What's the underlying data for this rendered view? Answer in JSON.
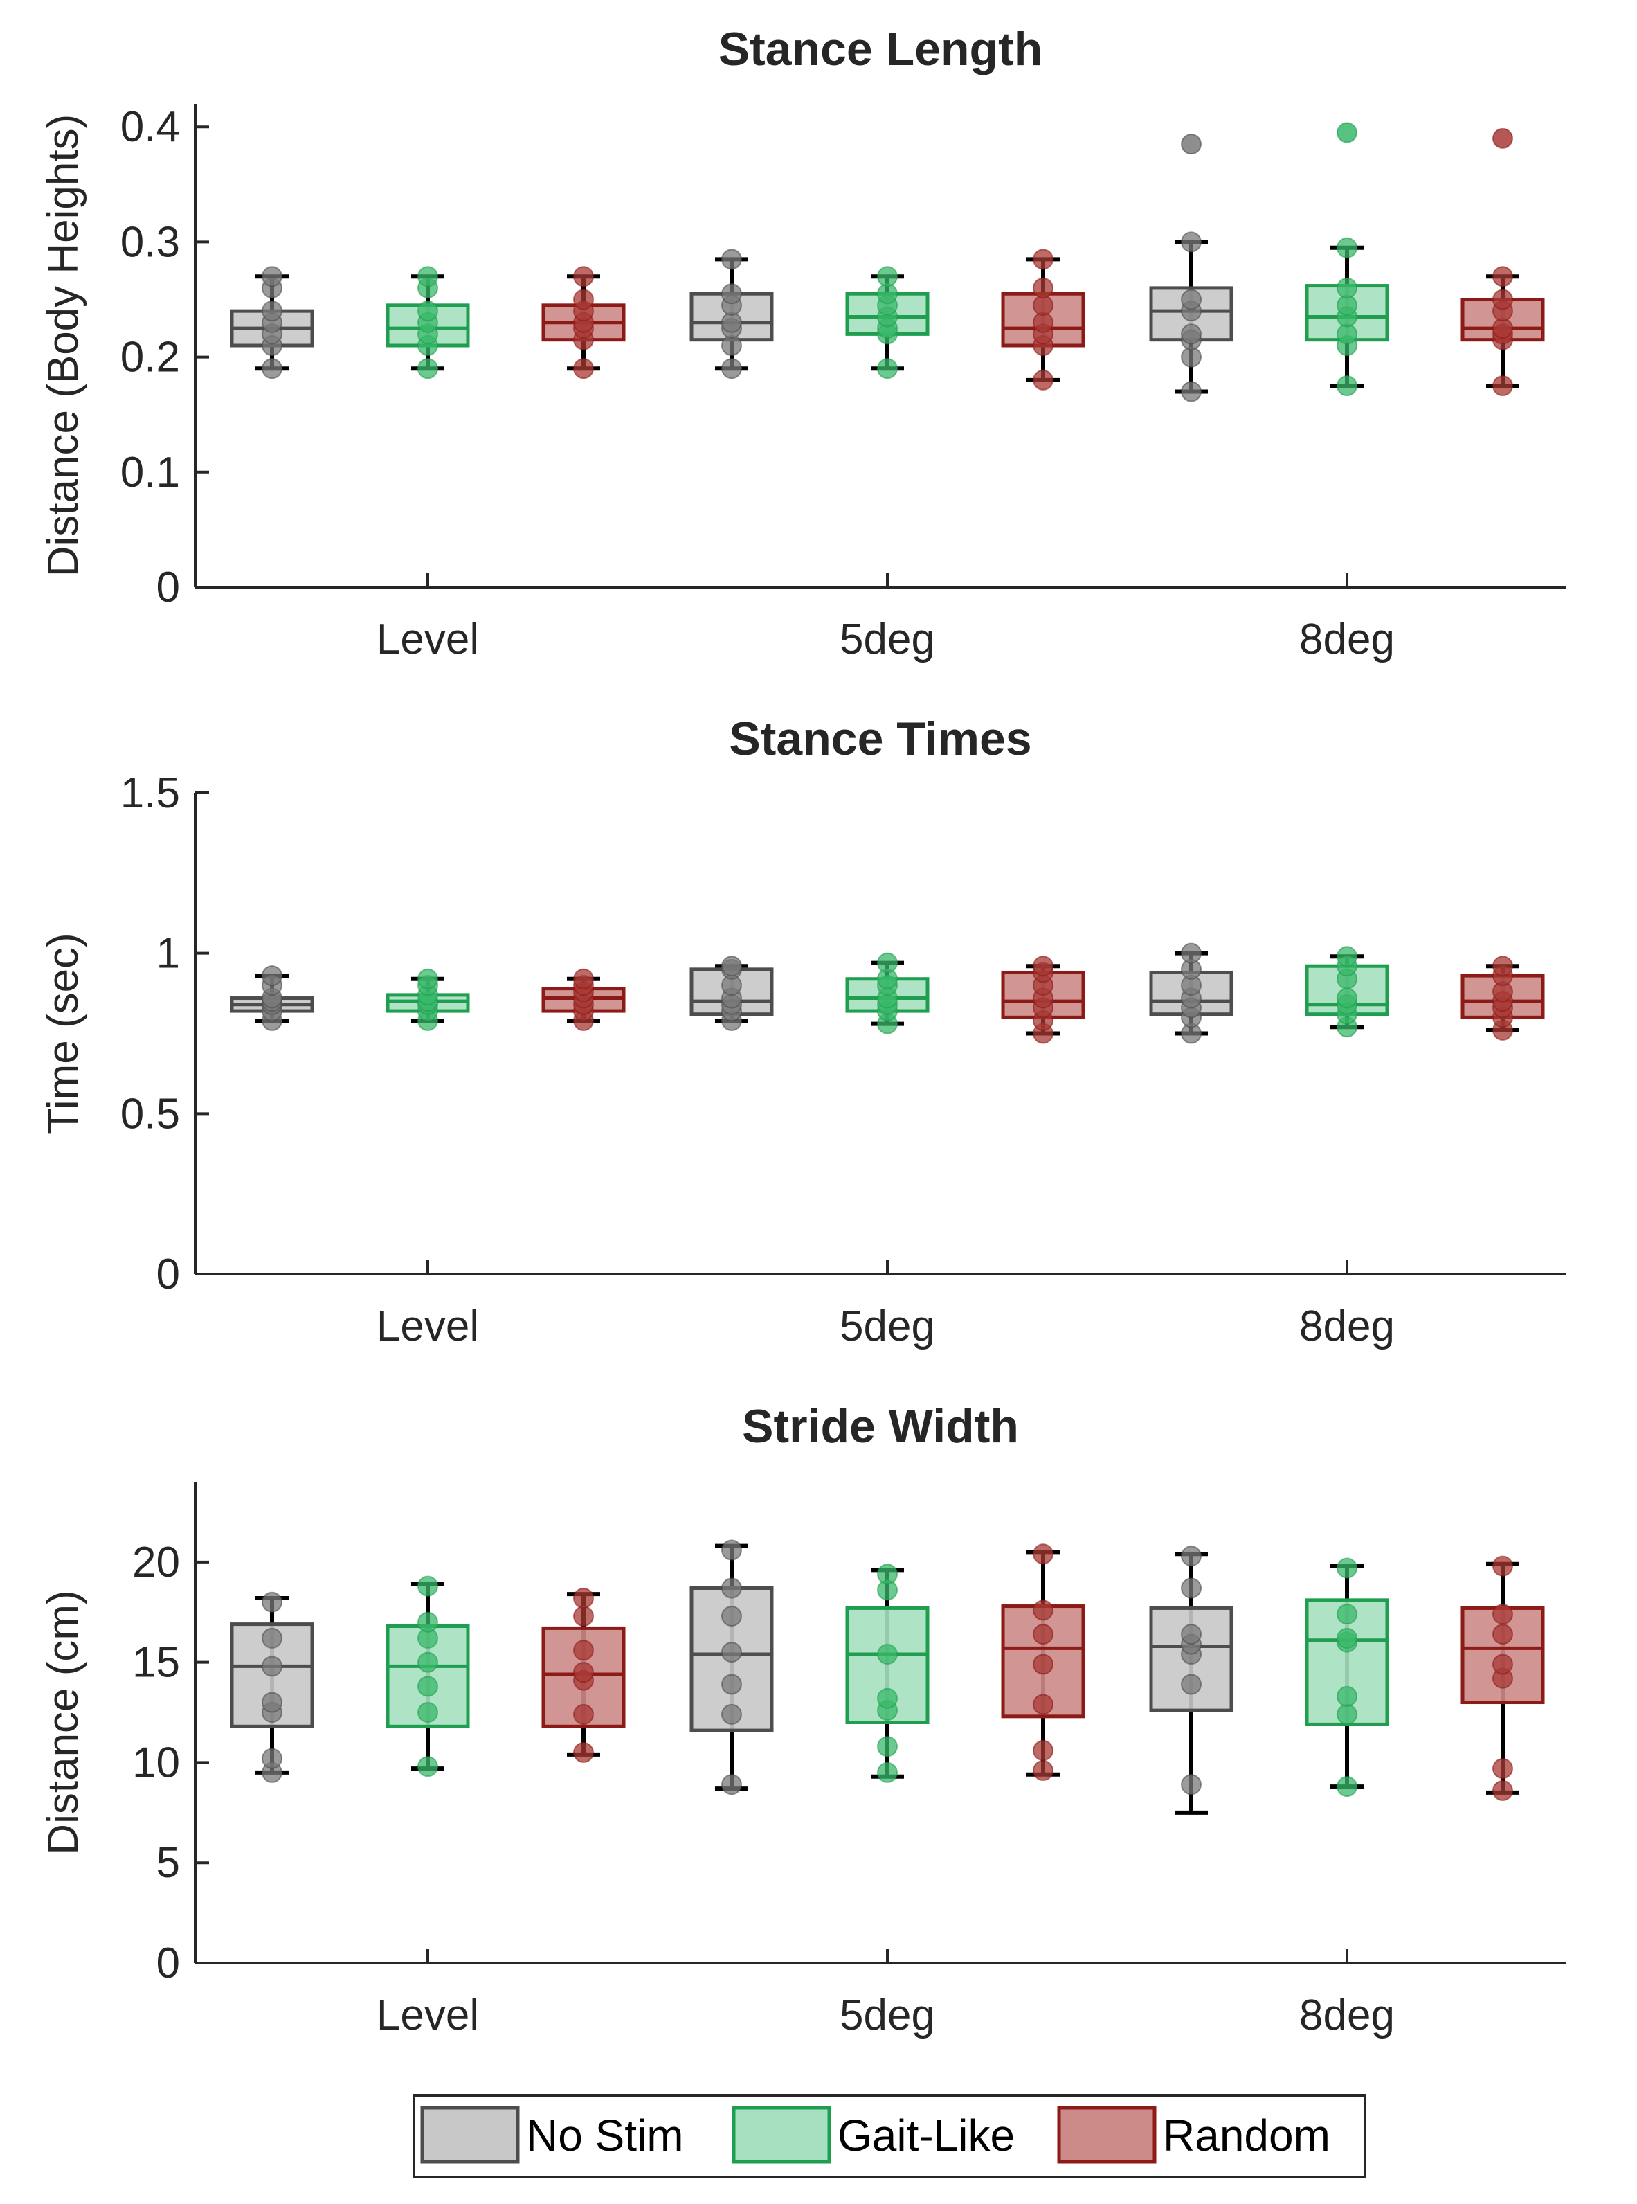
{
  "chart_data": [
    {
      "type": "boxplot",
      "title": "Stance Length",
      "xlabel": "",
      "ylabel": "Distance (Body Heights)",
      "ylim": [
        0,
        0.42
      ],
      "yticks": [
        0,
        0.1,
        0.2,
        0.3,
        0.4
      ],
      "ytick_labels": [
        "0",
        "0.1",
        "0.2",
        "0.3",
        "0.4"
      ],
      "categories": [
        "Level",
        "5deg",
        "8deg"
      ],
      "series": [
        {
          "name": "No Stim",
          "boxes": [
            {
              "category": "Level",
              "min": 0.19,
              "q1": 0.21,
              "median": 0.225,
              "q3": 0.24,
              "max": 0.27,
              "points": [
                0.19,
                0.21,
                0.22,
                0.23,
                0.24,
                0.26,
                0.27
              ],
              "outliers": []
            },
            {
              "category": "5deg",
              "min": 0.19,
              "q1": 0.215,
              "median": 0.23,
              "q3": 0.255,
              "max": 0.285,
              "points": [
                0.19,
                0.21,
                0.225,
                0.23,
                0.245,
                0.255,
                0.285
              ],
              "outliers": []
            },
            {
              "category": "8deg",
              "min": 0.17,
              "q1": 0.215,
              "median": 0.24,
              "q3": 0.26,
              "max": 0.3,
              "points": [
                0.17,
                0.2,
                0.215,
                0.22,
                0.24,
                0.25,
                0.3
              ],
              "outliers": [
                0.385
              ]
            }
          ]
        },
        {
          "name": "Gait-Like",
          "boxes": [
            {
              "category": "Level",
              "min": 0.19,
              "q1": 0.21,
              "median": 0.225,
              "q3": 0.245,
              "max": 0.27,
              "points": [
                0.19,
                0.21,
                0.22,
                0.23,
                0.24,
                0.26,
                0.27
              ],
              "outliers": []
            },
            {
              "category": "5deg",
              "min": 0.19,
              "q1": 0.22,
              "median": 0.235,
              "q3": 0.255,
              "max": 0.27,
              "points": [
                0.19,
                0.22,
                0.225,
                0.235,
                0.245,
                0.255,
                0.27
              ],
              "outliers": []
            },
            {
              "category": "8deg",
              "min": 0.175,
              "q1": 0.215,
              "median": 0.235,
              "q3": 0.262,
              "max": 0.295,
              "points": [
                0.175,
                0.21,
                0.22,
                0.235,
                0.245,
                0.26,
                0.295
              ],
              "outliers": [
                0.395
              ]
            }
          ]
        },
        {
          "name": "Random",
          "boxes": [
            {
              "category": "Level",
              "min": 0.19,
              "q1": 0.215,
              "median": 0.23,
              "q3": 0.245,
              "max": 0.27,
              "points": [
                0.19,
                0.215,
                0.225,
                0.23,
                0.24,
                0.25,
                0.27
              ],
              "outliers": []
            },
            {
              "category": "5deg",
              "min": 0.18,
              "q1": 0.21,
              "median": 0.225,
              "q3": 0.255,
              "max": 0.285,
              "points": [
                0.18,
                0.21,
                0.22,
                0.23,
                0.245,
                0.26,
                0.285
              ],
              "outliers": []
            },
            {
              "category": "8deg",
              "min": 0.175,
              "q1": 0.215,
              "median": 0.225,
              "q3": 0.25,
              "max": 0.27,
              "points": [
                0.175,
                0.215,
                0.22,
                0.225,
                0.24,
                0.25,
                0.27
              ],
              "outliers": [
                0.39
              ]
            }
          ]
        }
      ]
    },
    {
      "type": "boxplot",
      "title": "Stance Times",
      "xlabel": "",
      "ylabel": "Time (sec)",
      "ylim": [
        0,
        1.5
      ],
      "yticks": [
        0,
        0.5,
        1,
        1.5
      ],
      "ytick_labels": [
        "0",
        "0.5",
        "1",
        "1.5"
      ],
      "categories": [
        "Level",
        "5deg",
        "8deg"
      ],
      "series": [
        {
          "name": "No Stim",
          "boxes": [
            {
              "category": "Level",
              "min": 0.79,
              "q1": 0.82,
              "median": 0.84,
              "q3": 0.86,
              "max": 0.93,
              "points": [
                0.79,
                0.82,
                0.84,
                0.85,
                0.86,
                0.9,
                0.93
              ],
              "outliers": []
            },
            {
              "category": "5deg",
              "min": 0.79,
              "q1": 0.81,
              "median": 0.85,
              "q3": 0.95,
              "max": 0.96,
              "points": [
                0.79,
                0.82,
                0.84,
                0.86,
                0.9,
                0.95,
                0.96
              ],
              "outliers": []
            },
            {
              "category": "8deg",
              "min": 0.75,
              "q1": 0.81,
              "median": 0.85,
              "q3": 0.94,
              "max": 1.0,
              "points": [
                0.75,
                0.8,
                0.83,
                0.86,
                0.9,
                0.95,
                1.0
              ],
              "outliers": []
            }
          ]
        },
        {
          "name": "Gait-Like",
          "boxes": [
            {
              "category": "Level",
              "min": 0.79,
              "q1": 0.82,
              "median": 0.85,
              "q3": 0.87,
              "max": 0.92,
              "points": [
                0.79,
                0.82,
                0.84,
                0.85,
                0.87,
                0.9,
                0.92
              ],
              "outliers": []
            },
            {
              "category": "5deg",
              "min": 0.78,
              "q1": 0.82,
              "median": 0.86,
              "q3": 0.92,
              "max": 0.97,
              "points": [
                0.78,
                0.82,
                0.84,
                0.86,
                0.9,
                0.92,
                0.97
              ],
              "outliers": []
            },
            {
              "category": "8deg",
              "min": 0.77,
              "q1": 0.81,
              "median": 0.84,
              "q3": 0.96,
              "max": 0.99,
              "points": [
                0.77,
                0.81,
                0.84,
                0.86,
                0.92,
                0.96,
                0.99
              ],
              "outliers": []
            }
          ]
        },
        {
          "name": "Random",
          "boxes": [
            {
              "category": "Level",
              "min": 0.79,
              "q1": 0.82,
              "median": 0.86,
              "q3": 0.89,
              "max": 0.92,
              "points": [
                0.79,
                0.82,
                0.84,
                0.86,
                0.88,
                0.9,
                0.92
              ],
              "outliers": []
            },
            {
              "category": "5deg",
              "min": 0.75,
              "q1": 0.8,
              "median": 0.85,
              "q3": 0.94,
              "max": 0.96,
              "points": [
                0.75,
                0.79,
                0.83,
                0.86,
                0.9,
                0.94,
                0.96
              ],
              "outliers": []
            },
            {
              "category": "8deg",
              "min": 0.76,
              "q1": 0.8,
              "median": 0.85,
              "q3": 0.93,
              "max": 0.96,
              "points": [
                0.76,
                0.8,
                0.83,
                0.85,
                0.88,
                0.93,
                0.96
              ],
              "outliers": []
            }
          ]
        }
      ]
    },
    {
      "type": "boxplot",
      "title": "Stride Width",
      "xlabel": "",
      "ylabel": "Distance (cm)",
      "ylim": [
        0,
        24
      ],
      "yticks": [
        0,
        5,
        10,
        15,
        20
      ],
      "ytick_labels": [
        "0",
        "5",
        "10",
        "15",
        "20"
      ],
      "categories": [
        "Level",
        "5deg",
        "8deg"
      ],
      "series": [
        {
          "name": "No Stim",
          "boxes": [
            {
              "category": "Level",
              "min": 9.5,
              "q1": 11.8,
              "median": 14.8,
              "q3": 16.9,
              "max": 18.2,
              "points": [
                9.5,
                10.2,
                12.5,
                13.0,
                14.8,
                16.2,
                18.0
              ],
              "outliers": []
            },
            {
              "category": "5deg",
              "min": 8.7,
              "q1": 11.6,
              "median": 15.4,
              "q3": 18.7,
              "max": 20.8,
              "points": [
                8.9,
                12.4,
                13.9,
                15.5,
                17.3,
                18.7,
                20.6
              ],
              "outliers": []
            },
            {
              "category": "8deg",
              "min": 7.5,
              "q1": 12.6,
              "median": 15.8,
              "q3": 17.7,
              "max": 20.4,
              "points": [
                8.9,
                13.9,
                15.4,
                15.9,
                16.4,
                18.7,
                20.3
              ],
              "outliers": []
            }
          ]
        },
        {
          "name": "Gait-Like",
          "boxes": [
            {
              "category": "Level",
              "min": 9.7,
              "q1": 11.8,
              "median": 14.8,
              "q3": 16.8,
              "max": 18.9,
              "points": [
                9.8,
                12.5,
                13.8,
                15.0,
                16.2,
                17.0,
                18.8
              ],
              "outliers": []
            },
            {
              "category": "5deg",
              "min": 9.3,
              "q1": 12.0,
              "median": 15.4,
              "q3": 17.7,
              "max": 19.6,
              "points": [
                9.5,
                10.8,
                12.6,
                13.2,
                15.4,
                18.6,
                19.4
              ],
              "outliers": []
            },
            {
              "category": "8deg",
              "min": 8.8,
              "q1": 11.9,
              "median": 16.1,
              "q3": 18.1,
              "max": 19.8,
              "points": [
                8.8,
                12.4,
                13.3,
                16.0,
                16.2,
                17.4,
                19.7
              ],
              "outliers": []
            }
          ]
        },
        {
          "name": "Random",
          "boxes": [
            {
              "category": "Level",
              "min": 10.4,
              "q1": 11.8,
              "median": 14.4,
              "q3": 16.7,
              "max": 18.4,
              "points": [
                10.5,
                12.4,
                14.1,
                14.5,
                15.6,
                17.3,
                18.2
              ],
              "outliers": []
            },
            {
              "category": "5deg",
              "min": 9.4,
              "q1": 12.3,
              "median": 15.7,
              "q3": 17.8,
              "max": 20.5,
              "points": [
                9.6,
                10.6,
                12.9,
                14.9,
                16.4,
                17.6,
                20.4
              ],
              "outliers": []
            },
            {
              "category": "8deg",
              "min": 8.5,
              "q1": 13.0,
              "median": 15.7,
              "q3": 17.7,
              "max": 19.9,
              "points": [
                8.6,
                9.7,
                14.2,
                14.9,
                16.4,
                17.4,
                19.8
              ],
              "outliers": []
            }
          ]
        }
      ]
    }
  ],
  "legend": {
    "placement": "bottom-center",
    "entries": [
      {
        "label": "No Stim",
        "fill": "#c8c8c8",
        "stroke": "#4d4d4d"
      },
      {
        "label": "Gait-Like",
        "fill": "#a6e0c0",
        "stroke": "#1f9e4f"
      },
      {
        "label": "Random",
        "fill": "#cc8a88",
        "stroke": "#8c1a17"
      }
    ]
  },
  "colors": {
    "No Stim": {
      "fill": "#c8c8c8",
      "stroke": "#4d4d4d",
      "dot": "#7a7a7a"
    },
    "Gait-Like": {
      "fill": "#a6e0c0",
      "stroke": "#1f9e4f",
      "dot": "#3ab86a"
    },
    "Random": {
      "fill": "#cc8a88",
      "stroke": "#8c1a17",
      "dot": "#a83a36"
    }
  }
}
